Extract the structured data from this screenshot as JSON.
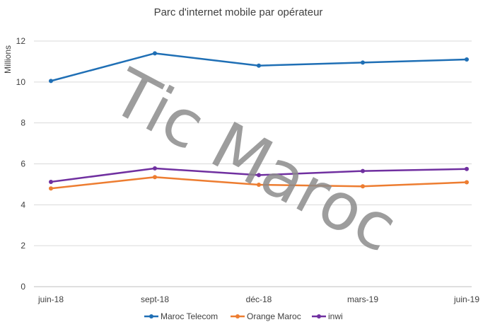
{
  "chart_data": {
    "type": "line",
    "title": "Parc d'internet mobile par opérateur",
    "ylabel": "Millions",
    "xlabel": "",
    "categories": [
      "juin-18",
      "sept-18",
      "déc-18",
      "mars-19",
      "juin-19"
    ],
    "ylim": [
      0,
      12
    ],
    "yticks": [
      0,
      2,
      4,
      6,
      8,
      10,
      12
    ],
    "grid": true,
    "legend_position": "bottom",
    "series": [
      {
        "name": "Maroc Telecom",
        "color": "#1f6fb5",
        "values": [
          10.05,
          11.4,
          10.8,
          10.95,
          11.1
        ]
      },
      {
        "name": "Orange Maroc",
        "color": "#ed7d31",
        "values": [
          4.8,
          5.35,
          4.98,
          4.9,
          5.1
        ]
      },
      {
        "name": "inwi",
        "color": "#7030a0",
        "values": [
          5.12,
          5.78,
          5.45,
          5.65,
          5.75
        ]
      }
    ],
    "watermark": "Tic Maroc"
  }
}
